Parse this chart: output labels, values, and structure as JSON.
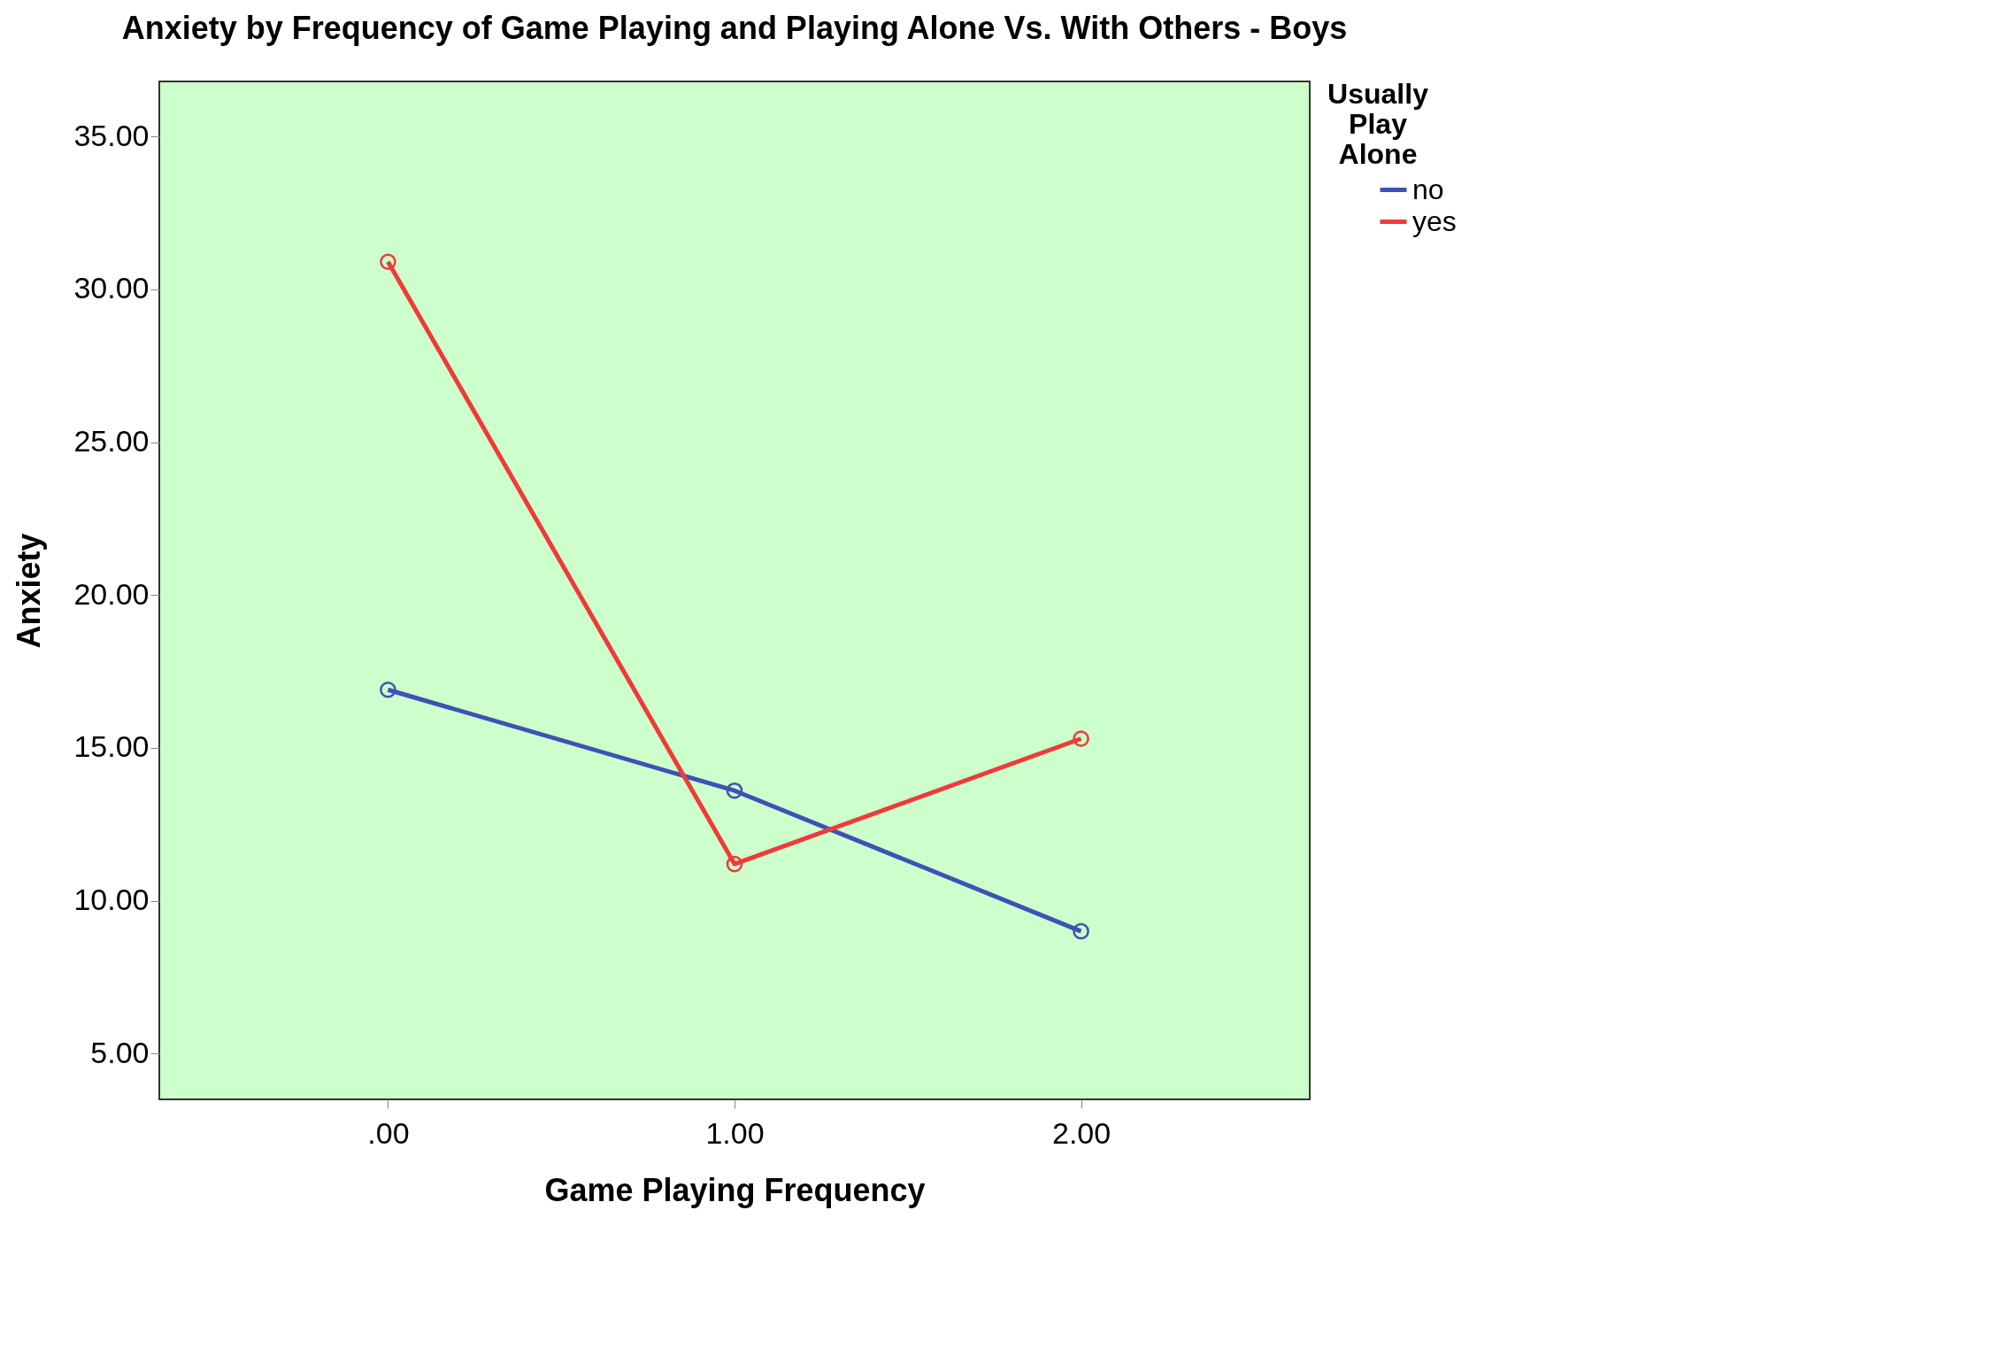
{
  "chart_data": {
    "type": "line",
    "title": "Anxiety by Frequency of Game Playing and Playing Alone Vs. With Others -  Boys",
    "xlabel": "Game Playing Frequency",
    "ylabel": "Anxiety",
    "legend_title": "Usually Play Alone",
    "x": [
      0,
      1,
      2
    ],
    "series": [
      {
        "name": "no",
        "color": "#3f51b5",
        "values": [
          16.9,
          13.6,
          9.0
        ]
      },
      {
        "name": "yes",
        "color": "#f03a3a",
        "values": [
          30.9,
          11.2,
          15.3
        ]
      }
    ],
    "xlim": [
      -0.66,
      2.66
    ],
    "xticks": [
      {
        "value": 0,
        "label": ".00"
      },
      {
        "value": 1,
        "label": "1.00"
      },
      {
        "value": 2,
        "label": "2.00"
      }
    ],
    "ylim": [
      3.5,
      36.8
    ],
    "yticks": [
      {
        "value": 5,
        "label": "5.00"
      },
      {
        "value": 10,
        "label": "10.00"
      },
      {
        "value": 15,
        "label": "15.00"
      },
      {
        "value": 20,
        "label": "20.00"
      },
      {
        "value": 25,
        "label": "25.00"
      },
      {
        "value": 30,
        "label": "30.00"
      },
      {
        "value": 35,
        "label": "35.00"
      }
    ],
    "grid": false,
    "legend": "top right",
    "marker": "circle",
    "line_style": "solid"
  }
}
